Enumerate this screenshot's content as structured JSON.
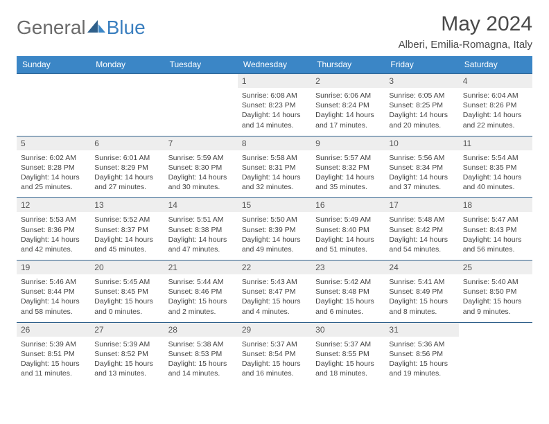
{
  "logo": {
    "text1": "General",
    "text2": "Blue"
  },
  "title": "May 2024",
  "subtitle": "Alberi, Emilia-Romagna, Italy",
  "colors": {
    "header_bg": "#3b86c6",
    "header_text": "#ffffff",
    "week_border": "#2e5f8a",
    "daynum_bg": "#eeeeee",
    "text": "#444444",
    "logo_gray": "#6a6a6a",
    "logo_blue": "#3b7fbf"
  },
  "weekdays": [
    "Sunday",
    "Monday",
    "Tuesday",
    "Wednesday",
    "Thursday",
    "Friday",
    "Saturday"
  ],
  "weeks": [
    [
      null,
      null,
      null,
      {
        "n": "1",
        "sr": "Sunrise: 6:08 AM",
        "ss": "Sunset: 8:23 PM",
        "d1": "Daylight: 14 hours",
        "d2": "and 14 minutes."
      },
      {
        "n": "2",
        "sr": "Sunrise: 6:06 AM",
        "ss": "Sunset: 8:24 PM",
        "d1": "Daylight: 14 hours",
        "d2": "and 17 minutes."
      },
      {
        "n": "3",
        "sr": "Sunrise: 6:05 AM",
        "ss": "Sunset: 8:25 PM",
        "d1": "Daylight: 14 hours",
        "d2": "and 20 minutes."
      },
      {
        "n": "4",
        "sr": "Sunrise: 6:04 AM",
        "ss": "Sunset: 8:26 PM",
        "d1": "Daylight: 14 hours",
        "d2": "and 22 minutes."
      }
    ],
    [
      {
        "n": "5",
        "sr": "Sunrise: 6:02 AM",
        "ss": "Sunset: 8:28 PM",
        "d1": "Daylight: 14 hours",
        "d2": "and 25 minutes."
      },
      {
        "n": "6",
        "sr": "Sunrise: 6:01 AM",
        "ss": "Sunset: 8:29 PM",
        "d1": "Daylight: 14 hours",
        "d2": "and 27 minutes."
      },
      {
        "n": "7",
        "sr": "Sunrise: 5:59 AM",
        "ss": "Sunset: 8:30 PM",
        "d1": "Daylight: 14 hours",
        "d2": "and 30 minutes."
      },
      {
        "n": "8",
        "sr": "Sunrise: 5:58 AM",
        "ss": "Sunset: 8:31 PM",
        "d1": "Daylight: 14 hours",
        "d2": "and 32 minutes."
      },
      {
        "n": "9",
        "sr": "Sunrise: 5:57 AM",
        "ss": "Sunset: 8:32 PM",
        "d1": "Daylight: 14 hours",
        "d2": "and 35 minutes."
      },
      {
        "n": "10",
        "sr": "Sunrise: 5:56 AM",
        "ss": "Sunset: 8:34 PM",
        "d1": "Daylight: 14 hours",
        "d2": "and 37 minutes."
      },
      {
        "n": "11",
        "sr": "Sunrise: 5:54 AM",
        "ss": "Sunset: 8:35 PM",
        "d1": "Daylight: 14 hours",
        "d2": "and 40 minutes."
      }
    ],
    [
      {
        "n": "12",
        "sr": "Sunrise: 5:53 AM",
        "ss": "Sunset: 8:36 PM",
        "d1": "Daylight: 14 hours",
        "d2": "and 42 minutes."
      },
      {
        "n": "13",
        "sr": "Sunrise: 5:52 AM",
        "ss": "Sunset: 8:37 PM",
        "d1": "Daylight: 14 hours",
        "d2": "and 45 minutes."
      },
      {
        "n": "14",
        "sr": "Sunrise: 5:51 AM",
        "ss": "Sunset: 8:38 PM",
        "d1": "Daylight: 14 hours",
        "d2": "and 47 minutes."
      },
      {
        "n": "15",
        "sr": "Sunrise: 5:50 AM",
        "ss": "Sunset: 8:39 PM",
        "d1": "Daylight: 14 hours",
        "d2": "and 49 minutes."
      },
      {
        "n": "16",
        "sr": "Sunrise: 5:49 AM",
        "ss": "Sunset: 8:40 PM",
        "d1": "Daylight: 14 hours",
        "d2": "and 51 minutes."
      },
      {
        "n": "17",
        "sr": "Sunrise: 5:48 AM",
        "ss": "Sunset: 8:42 PM",
        "d1": "Daylight: 14 hours",
        "d2": "and 54 minutes."
      },
      {
        "n": "18",
        "sr": "Sunrise: 5:47 AM",
        "ss": "Sunset: 8:43 PM",
        "d1": "Daylight: 14 hours",
        "d2": "and 56 minutes."
      }
    ],
    [
      {
        "n": "19",
        "sr": "Sunrise: 5:46 AM",
        "ss": "Sunset: 8:44 PM",
        "d1": "Daylight: 14 hours",
        "d2": "and 58 minutes."
      },
      {
        "n": "20",
        "sr": "Sunrise: 5:45 AM",
        "ss": "Sunset: 8:45 PM",
        "d1": "Daylight: 15 hours",
        "d2": "and 0 minutes."
      },
      {
        "n": "21",
        "sr": "Sunrise: 5:44 AM",
        "ss": "Sunset: 8:46 PM",
        "d1": "Daylight: 15 hours",
        "d2": "and 2 minutes."
      },
      {
        "n": "22",
        "sr": "Sunrise: 5:43 AM",
        "ss": "Sunset: 8:47 PM",
        "d1": "Daylight: 15 hours",
        "d2": "and 4 minutes."
      },
      {
        "n": "23",
        "sr": "Sunrise: 5:42 AM",
        "ss": "Sunset: 8:48 PM",
        "d1": "Daylight: 15 hours",
        "d2": "and 6 minutes."
      },
      {
        "n": "24",
        "sr": "Sunrise: 5:41 AM",
        "ss": "Sunset: 8:49 PM",
        "d1": "Daylight: 15 hours",
        "d2": "and 8 minutes."
      },
      {
        "n": "25",
        "sr": "Sunrise: 5:40 AM",
        "ss": "Sunset: 8:50 PM",
        "d1": "Daylight: 15 hours",
        "d2": "and 9 minutes."
      }
    ],
    [
      {
        "n": "26",
        "sr": "Sunrise: 5:39 AM",
        "ss": "Sunset: 8:51 PM",
        "d1": "Daylight: 15 hours",
        "d2": "and 11 minutes."
      },
      {
        "n": "27",
        "sr": "Sunrise: 5:39 AM",
        "ss": "Sunset: 8:52 PM",
        "d1": "Daylight: 15 hours",
        "d2": "and 13 minutes."
      },
      {
        "n": "28",
        "sr": "Sunrise: 5:38 AM",
        "ss": "Sunset: 8:53 PM",
        "d1": "Daylight: 15 hours",
        "d2": "and 14 minutes."
      },
      {
        "n": "29",
        "sr": "Sunrise: 5:37 AM",
        "ss": "Sunset: 8:54 PM",
        "d1": "Daylight: 15 hours",
        "d2": "and 16 minutes."
      },
      {
        "n": "30",
        "sr": "Sunrise: 5:37 AM",
        "ss": "Sunset: 8:55 PM",
        "d1": "Daylight: 15 hours",
        "d2": "and 18 minutes."
      },
      {
        "n": "31",
        "sr": "Sunrise: 5:36 AM",
        "ss": "Sunset: 8:56 PM",
        "d1": "Daylight: 15 hours",
        "d2": "and 19 minutes."
      },
      null
    ]
  ]
}
